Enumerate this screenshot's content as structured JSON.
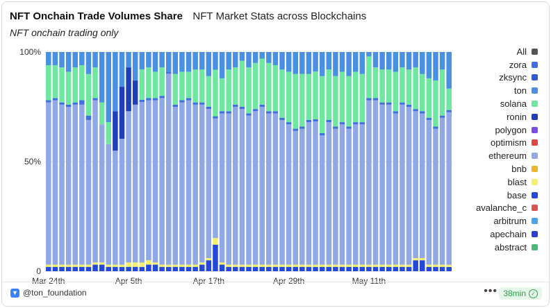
{
  "header": {
    "title": "NFT Onchain Trade Volumes Share",
    "subtitle": "NFT Market Stats across Blockchains",
    "caption": "NFT onchain trading only"
  },
  "footer": {
    "handle": "@ton_foundation",
    "more_label": "•••",
    "freshness": "38min"
  },
  "chart_data": {
    "type": "bar",
    "stacked": true,
    "normalized": true,
    "yticks": [
      "0",
      "50%",
      "100%"
    ],
    "ylim": [
      0,
      100
    ],
    "xtick_labels": [
      "Mar 24th",
      "Apr 5th",
      "Apr 17th",
      "Apr 29th",
      "May 11th"
    ],
    "categories": [
      "Mar 24",
      "Mar 25",
      "Mar 26",
      "Mar 27",
      "Mar 28",
      "Mar 29",
      "Mar 30",
      "Mar 31",
      "Apr 1",
      "Apr 2",
      "Apr 3",
      "Apr 4",
      "Apr 5",
      "Apr 6",
      "Apr 7",
      "Apr 8",
      "Apr 9",
      "Apr 10",
      "Apr 11",
      "Apr 12",
      "Apr 13",
      "Apr 14",
      "Apr 15",
      "Apr 16",
      "Apr 17",
      "Apr 18",
      "Apr 19",
      "Apr 20",
      "Apr 21",
      "Apr 22",
      "Apr 23",
      "Apr 24",
      "Apr 25",
      "Apr 26",
      "Apr 27",
      "Apr 28",
      "Apr 29",
      "Apr 30",
      "May 1",
      "May 2",
      "May 3",
      "May 4",
      "May 5",
      "May 6",
      "May 7",
      "May 8",
      "May 9",
      "May 10",
      "May 11",
      "May 12",
      "May 13",
      "May 14",
      "May 15",
      "May 16",
      "May 17",
      "May 18",
      "May 19",
      "May 20",
      "May 21",
      "May 22",
      "May 23"
    ],
    "legend": [
      {
        "name": "All",
        "color": "#555555"
      },
      {
        "name": "zora",
        "color": "#3f6fe0"
      },
      {
        "name": "zksync",
        "color": "#2f5bd8"
      },
      {
        "name": "ton",
        "color": "#4a90e2"
      },
      {
        "name": "solana",
        "color": "#6ee7a0"
      },
      {
        "name": "ronin",
        "color": "#1f3fb8"
      },
      {
        "name": "polygon",
        "color": "#7b4fe0"
      },
      {
        "name": "optimism",
        "color": "#e0463f"
      },
      {
        "name": "ethereum",
        "color": "#91a8e6"
      },
      {
        "name": "bnb",
        "color": "#f0b429"
      },
      {
        "name": "blast",
        "color": "#f5f06a"
      },
      {
        "name": "base",
        "color": "#2448d8"
      },
      {
        "name": "avalanche_c",
        "color": "#d9534f"
      },
      {
        "name": "arbitrum",
        "color": "#4aa3f0"
      },
      {
        "name": "apechain",
        "color": "#2c3fcf"
      },
      {
        "name": "abstract",
        "color": "#4cb87a"
      }
    ],
    "series": [
      {
        "name": "base",
        "color": "#2448d8",
        "values": [
          2,
          2,
          2,
          2,
          2,
          2,
          2,
          3,
          3,
          2,
          2,
          2,
          2,
          2,
          2,
          3,
          3,
          2,
          2,
          2,
          2,
          2,
          2,
          3,
          5,
          12,
          3,
          2,
          2,
          2,
          2,
          2,
          2,
          2,
          2,
          2,
          2,
          2,
          2,
          2,
          2,
          2,
          2,
          2,
          2,
          2,
          2,
          2,
          2,
          2,
          2,
          2,
          2,
          2,
          2,
          5,
          5,
          2,
          2,
          2,
          2
        ]
      },
      {
        "name": "blast",
        "color": "#f5f06a",
        "values": [
          1,
          1,
          1,
          1,
          1,
          1,
          1,
          1,
          1,
          1,
          1,
          1,
          2,
          2,
          2,
          2,
          1,
          1,
          1,
          1,
          1,
          1,
          1,
          1,
          1,
          3,
          1,
          1,
          1,
          1,
          1,
          1,
          1,
          1,
          1,
          1,
          1,
          1,
          1,
          1,
          1,
          1,
          1,
          1,
          1,
          1,
          1,
          1,
          1,
          1,
          1,
          1,
          1,
          1,
          1,
          1,
          1,
          1,
          1,
          1,
          1
        ]
      },
      {
        "name": "ethereum",
        "color": "#91a8e6",
        "values": [
          74,
          75,
          73,
          72,
          73,
          73,
          66,
          74,
          63,
          55,
          52,
          58,
          69,
          72,
          74,
          73,
          74,
          76,
          88,
          72,
          74,
          75,
          73,
          72,
          68,
          54,
          68,
          69,
          72,
          71,
          68,
          70,
          72,
          69,
          69,
          66,
          64,
          61,
          62,
          65,
          66,
          59,
          65,
          62,
          64,
          62,
          64,
          64,
          75,
          75,
          73,
          73,
          69,
          73,
          72,
          67,
          66,
          66,
          62,
          67,
          71
        ]
      },
      {
        "name": "ronin",
        "color": "#1f3fb8",
        "values": [
          0,
          0,
          0,
          0,
          0,
          0,
          0,
          0,
          0,
          0,
          18,
          24,
          20,
          11,
          0,
          0,
          0,
          0,
          0,
          0,
          0,
          0,
          0,
          0,
          0,
          0,
          0,
          0,
          0,
          0,
          0,
          0,
          0,
          0,
          0,
          0,
          0,
          0,
          0,
          0,
          0,
          0,
          0,
          0,
          0,
          0,
          0,
          0,
          0,
          0,
          0,
          0,
          0,
          0,
          0,
          0,
          0,
          0,
          0,
          0,
          0
        ]
      },
      {
        "name": "zora",
        "color": "#3f6fe0",
        "values": [
          1,
          1,
          1,
          1,
          1,
          2,
          2,
          1,
          0,
          0,
          0,
          0,
          0,
          0,
          1,
          1,
          1,
          1,
          1,
          1,
          1,
          1,
          1,
          1,
          1,
          1,
          1,
          1,
          1,
          1,
          1,
          1,
          1,
          1,
          1,
          1,
          1,
          1,
          1,
          1,
          1,
          1,
          1,
          1,
          1,
          1,
          1,
          1,
          1,
          1,
          1,
          1,
          1,
          1,
          1,
          1,
          1,
          1,
          1,
          1,
          1
        ]
      },
      {
        "name": "solana",
        "color": "#6ee7a0",
        "values": [
          16,
          15,
          16,
          15,
          16,
          16,
          19,
          14,
          10,
          10,
          0,
          0,
          0,
          0,
          14,
          14,
          12,
          13,
          0,
          14,
          13,
          12,
          15,
          15,
          14,
          21,
          15,
          19,
          17,
          21,
          21,
          21,
          21,
          22,
          21,
          22,
          23,
          25,
          24,
          21,
          22,
          26,
          23,
          23,
          23,
          23,
          23,
          22,
          19,
          14,
          15,
          15,
          18,
          16,
          16,
          19,
          17,
          18,
          21,
          21,
          10
        ]
      },
      {
        "name": "ton",
        "color": "#4a90e2",
        "values": [
          6,
          6,
          7,
          9,
          7,
          6,
          10,
          7,
          23,
          32,
          27,
          16,
          7,
          13,
          8,
          7,
          9,
          7,
          9,
          10,
          9,
          9,
          8,
          8,
          11,
          8,
          12,
          8,
          7,
          4,
          7,
          5,
          3,
          5,
          6,
          8,
          9,
          10,
          10,
          10,
          9,
          11,
          8,
          11,
          9,
          11,
          9,
          10,
          2,
          7,
          8,
          8,
          9,
          7,
          8,
          7,
          10,
          12,
          13,
          8,
          17
        ]
      }
    ]
  }
}
